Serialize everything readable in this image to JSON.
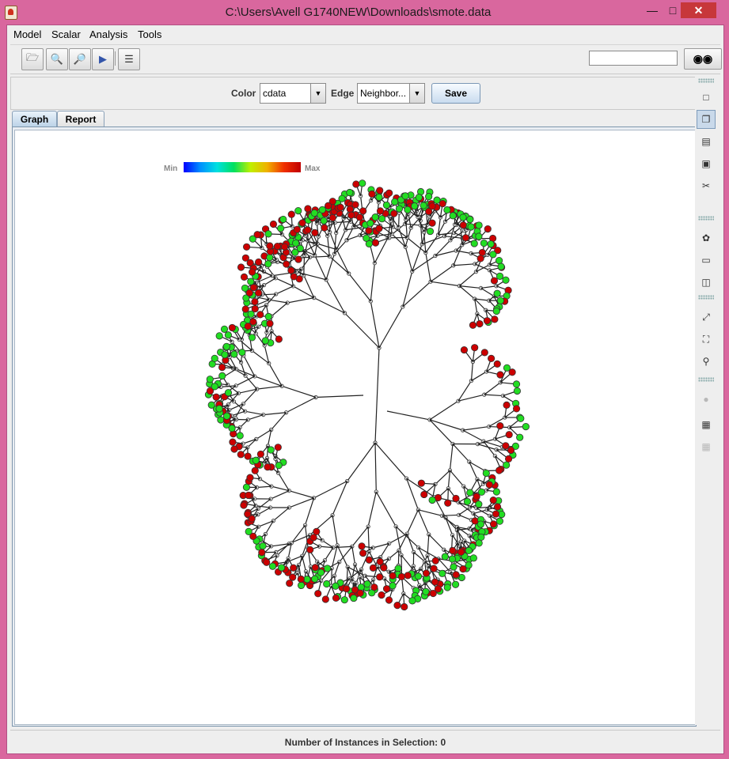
{
  "window": {
    "title": "C:\\Users\\Avell G1740NEW\\Downloads\\smote.data"
  },
  "menu": {
    "items": [
      "Model",
      "Scalar",
      "Analysis",
      "Tools"
    ]
  },
  "toolbar": {
    "search_value": ""
  },
  "controls": {
    "color_label": "Color",
    "color_value": "cdata",
    "edge_label": "Edge",
    "edge_value": "Neighbor...",
    "save_label": "Save"
  },
  "tabs": [
    {
      "label": "Graph",
      "active": true
    },
    {
      "label": "Report",
      "active": false
    }
  ],
  "legend": {
    "min": "Min",
    "max": "Max"
  },
  "colors": {
    "node_red": "#cc0000",
    "node_green": "#22dd22",
    "node_gray": "#dddddd"
  },
  "status": {
    "text": "Number of Instances in Selection: 0"
  }
}
